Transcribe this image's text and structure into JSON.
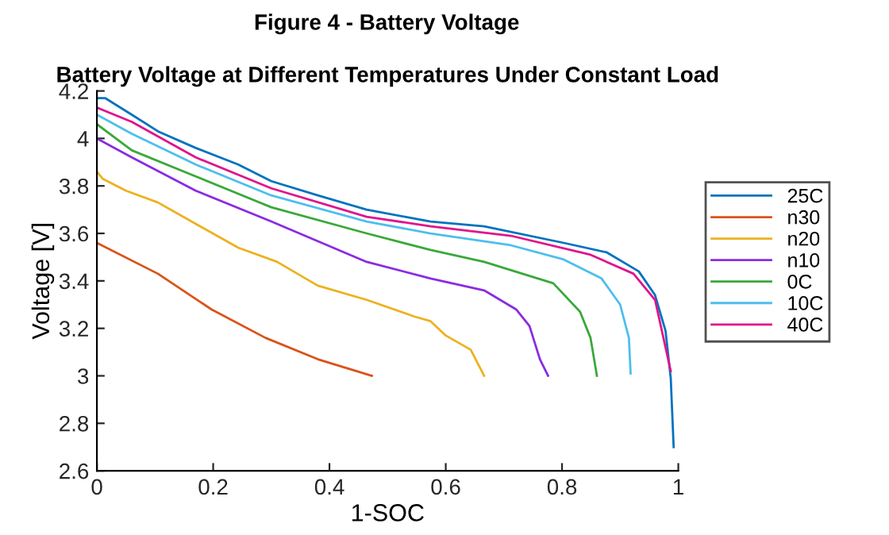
{
  "chart_data": {
    "type": "line",
    "title": "Figure 4 - Battery Voltage",
    "subtitle": "Battery Voltage at Different Temperatures Under Constant Load",
    "xlabel": "1-SOC",
    "ylabel": "Voltage [V]",
    "xlim": [
      0,
      1
    ],
    "ylim": [
      2.6,
      4.2
    ],
    "xticks": [
      0,
      0.2,
      0.4,
      0.6,
      0.8,
      1
    ],
    "yticks": [
      2.6,
      2.8,
      3,
      3.2,
      3.4,
      3.6,
      3.8,
      4,
      4.2
    ],
    "grid": false,
    "legend": "right",
    "marker": "none",
    "line_style": "solid",
    "series": [
      {
        "name": "25C",
        "color": "#0072bd",
        "x": [
          0,
          0.014,
          0.06,
          0.105,
          0.17,
          0.243,
          0.3,
          0.38,
          0.464,
          0.53,
          0.574,
          0.666,
          0.803,
          0.877,
          0.932,
          0.96,
          0.978,
          0.987,
          0.992
        ],
        "values": [
          4.17,
          4.17,
          4.1,
          4.03,
          3.96,
          3.89,
          3.82,
          3.76,
          3.7,
          3.67,
          3.65,
          3.63,
          3.56,
          3.52,
          3.44,
          3.34,
          3.19,
          2.99,
          2.7
        ]
      },
      {
        "name": "n30",
        "color": "#d95319",
        "x": [
          0,
          0.105,
          0.197,
          0.29,
          0.38,
          0.473
        ],
        "values": [
          3.56,
          3.43,
          3.28,
          3.16,
          3.07,
          3.0
        ]
      },
      {
        "name": "n20",
        "color": "#edb120",
        "x": [
          0,
          0.01,
          0.05,
          0.105,
          0.17,
          0.243,
          0.31,
          0.38,
          0.464,
          0.546,
          0.574,
          0.6,
          0.643,
          0.666
        ],
        "values": [
          3.86,
          3.83,
          3.78,
          3.73,
          3.64,
          3.54,
          3.48,
          3.38,
          3.32,
          3.25,
          3.23,
          3.17,
          3.11,
          3.0
        ]
      },
      {
        "name": "n10",
        "color": "#8a2be2",
        "x": [
          0,
          0.06,
          0.17,
          0.3,
          0.464,
          0.574,
          0.666,
          0.721,
          0.744,
          0.762,
          0.776
        ],
        "values": [
          4.0,
          3.92,
          3.78,
          3.65,
          3.48,
          3.41,
          3.36,
          3.28,
          3.21,
          3.07,
          3.0
        ]
      },
      {
        "name": "0C",
        "color": "#3aa83a",
        "x": [
          0,
          0.06,
          0.17,
          0.3,
          0.464,
          0.574,
          0.666,
          0.785,
          0.831,
          0.849,
          0.86
        ],
        "values": [
          4.06,
          3.95,
          3.84,
          3.71,
          3.6,
          3.53,
          3.48,
          3.39,
          3.27,
          3.16,
          3.0
        ]
      },
      {
        "name": "10C",
        "color": "#4dbeee",
        "x": [
          0,
          0.06,
          0.17,
          0.3,
          0.464,
          0.574,
          0.712,
          0.803,
          0.868,
          0.9,
          0.915,
          0.918
        ],
        "values": [
          4.1,
          4.02,
          3.89,
          3.76,
          3.65,
          3.6,
          3.55,
          3.49,
          3.41,
          3.3,
          3.16,
          3.01
        ]
      },
      {
        "name": "40C",
        "color": "#e0138c",
        "x": [
          0,
          0.06,
          0.17,
          0.3,
          0.464,
          0.574,
          0.712,
          0.849,
          0.923,
          0.96,
          0.987
        ],
        "values": [
          4.13,
          4.07,
          3.92,
          3.79,
          3.67,
          3.63,
          3.59,
          3.51,
          3.43,
          3.32,
          3.02
        ]
      }
    ]
  }
}
